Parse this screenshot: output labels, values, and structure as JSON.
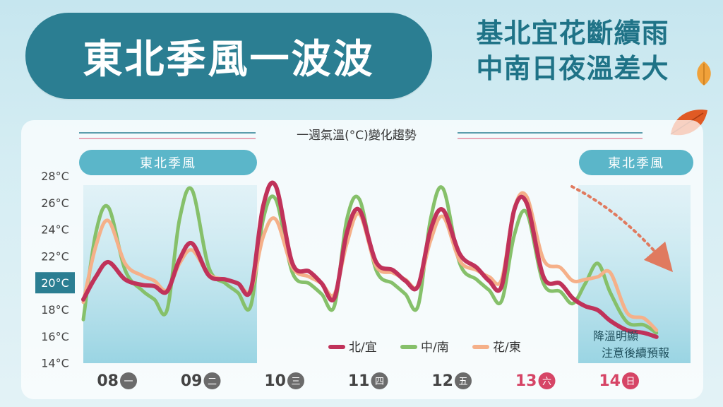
{
  "header": {
    "title": "東北季風一波波",
    "subtitle_line1": "基北宜花斷續雨",
    "subtitle_line2": "中南日夜溫差大"
  },
  "colors": {
    "north": "#c0325a",
    "central_south": "#86c06a",
    "hualien_taitung": "#f5b089",
    "title_bg": "#2b7e92",
    "band_fill": "#a9dbe7",
    "arrow": "#e07a5f"
  },
  "chart_data": {
    "type": "line",
    "title": "一週氣溫(°C)變化趨勢",
    "ylim": [
      14,
      28
    ],
    "yticks": [
      "28°C",
      "26°C",
      "24°C",
      "22°C",
      "20°C",
      "18°C",
      "16°C",
      "14°C"
    ],
    "highlight_tick": "20°C",
    "days": [
      {
        "date": "08",
        "weekday": "一",
        "weekend": false
      },
      {
        "date": "09",
        "weekday": "二",
        "weekend": false
      },
      {
        "date": "10",
        "weekday": "三",
        "weekend": false
      },
      {
        "date": "11",
        "weekday": "四",
        "weekend": false
      },
      {
        "date": "12",
        "weekday": "五",
        "weekend": false
      },
      {
        "date": "13",
        "weekday": "六",
        "weekend": true
      },
      {
        "date": "14",
        "weekday": "日",
        "weekend": true
      }
    ],
    "bands": [
      {
        "label": "東北季風",
        "from_day": 0,
        "to_day": 2
      },
      {
        "label": "東北季風",
        "from_day": 6,
        "to_day": 7
      }
    ],
    "annotation_line1": "降溫明顯",
    "annotation_line2": "注意後續預報",
    "series": [
      {
        "name": "北/宜",
        "color": "#c0325a",
        "points": [
          [
            0,
            18.8
          ],
          [
            0.15,
            20.5
          ],
          [
            0.3,
            21.6
          ],
          [
            0.5,
            20.3
          ],
          [
            0.7,
            19.9
          ],
          [
            0.85,
            19.8
          ],
          [
            1.0,
            19.4
          ],
          [
            1.15,
            21.8
          ],
          [
            1.3,
            23.0
          ],
          [
            1.5,
            20.6
          ],
          [
            1.7,
            20.3
          ],
          [
            1.85,
            20.0
          ],
          [
            2.0,
            19.5
          ],
          [
            2.15,
            25.8
          ],
          [
            2.3,
            27.3
          ],
          [
            2.5,
            21.5
          ],
          [
            2.7,
            20.9
          ],
          [
            2.85,
            20.0
          ],
          [
            3.0,
            18.9
          ],
          [
            3.15,
            23.8
          ],
          [
            3.3,
            25.5
          ],
          [
            3.5,
            21.6
          ],
          [
            3.7,
            21.0
          ],
          [
            3.85,
            20.2
          ],
          [
            4.0,
            19.8
          ],
          [
            4.15,
            24.0
          ],
          [
            4.3,
            25.5
          ],
          [
            4.5,
            22.2
          ],
          [
            4.7,
            21.2
          ],
          [
            4.85,
            20.2
          ],
          [
            5.0,
            19.8
          ],
          [
            5.15,
            25.5
          ],
          [
            5.3,
            26.0
          ],
          [
            5.5,
            20.5
          ],
          [
            5.7,
            20.0
          ],
          [
            5.85,
            18.9
          ],
          [
            6.0,
            18.3
          ],
          [
            6.15,
            18.0
          ],
          [
            6.3,
            17.2
          ],
          [
            6.5,
            16.5
          ],
          [
            6.7,
            16.3
          ],
          [
            6.85,
            16.0
          ]
        ]
      },
      {
        "name": "中/南",
        "color": "#86c06a",
        "points": [
          [
            0,
            17.3
          ],
          [
            0.15,
            23.8
          ],
          [
            0.3,
            25.7
          ],
          [
            0.5,
            21.0
          ],
          [
            0.7,
            19.5
          ],
          [
            0.85,
            18.8
          ],
          [
            1.0,
            18.0
          ],
          [
            1.15,
            24.8
          ],
          [
            1.3,
            27.0
          ],
          [
            1.5,
            21.2
          ],
          [
            1.7,
            20.0
          ],
          [
            1.85,
            19.3
          ],
          [
            2.0,
            18.3
          ],
          [
            2.15,
            24.8
          ],
          [
            2.3,
            26.3
          ],
          [
            2.5,
            20.8
          ],
          [
            2.7,
            20.0
          ],
          [
            2.85,
            19.2
          ],
          [
            3.0,
            18.3
          ],
          [
            3.15,
            24.8
          ],
          [
            3.3,
            26.3
          ],
          [
            3.5,
            21.0
          ],
          [
            3.7,
            20.0
          ],
          [
            3.85,
            19.2
          ],
          [
            4.0,
            18.3
          ],
          [
            4.15,
            24.8
          ],
          [
            4.3,
            27.1
          ],
          [
            4.5,
            21.5
          ],
          [
            4.7,
            20.3
          ],
          [
            4.85,
            19.5
          ],
          [
            5.0,
            18.7
          ],
          [
            5.15,
            23.6
          ],
          [
            5.3,
            25.3
          ],
          [
            5.5,
            20.0
          ],
          [
            5.7,
            19.4
          ],
          [
            5.85,
            18.5
          ],
          [
            6.0,
            20.0
          ],
          [
            6.15,
            21.5
          ],
          [
            6.3,
            19.3
          ],
          [
            6.5,
            17.1
          ],
          [
            6.7,
            16.9
          ],
          [
            6.85,
            16.3
          ]
        ]
      },
      {
        "name": "花/東",
        "color": "#f5b089",
        "points": [
          [
            0,
            18.6
          ],
          [
            0.15,
            22.8
          ],
          [
            0.3,
            24.7
          ],
          [
            0.5,
            21.5
          ],
          [
            0.7,
            20.6
          ],
          [
            0.85,
            20.2
          ],
          [
            1.0,
            19.5
          ],
          [
            1.15,
            21.5
          ],
          [
            1.3,
            22.5
          ],
          [
            1.5,
            20.7
          ],
          [
            1.7,
            20.3
          ],
          [
            1.85,
            20.0
          ],
          [
            2.0,
            19.5
          ],
          [
            2.15,
            23.5
          ],
          [
            2.3,
            24.8
          ],
          [
            2.5,
            21.2
          ],
          [
            2.7,
            20.5
          ],
          [
            2.85,
            20.0
          ],
          [
            3.0,
            19.2
          ],
          [
            3.15,
            23.0
          ],
          [
            3.3,
            25.2
          ],
          [
            3.5,
            21.3
          ],
          [
            3.7,
            20.8
          ],
          [
            3.85,
            20.3
          ],
          [
            4.0,
            19.8
          ],
          [
            4.15,
            23.2
          ],
          [
            4.3,
            25.0
          ],
          [
            4.5,
            21.7
          ],
          [
            4.7,
            21.0
          ],
          [
            4.85,
            20.5
          ],
          [
            5.0,
            20.3
          ],
          [
            5.15,
            25.6
          ],
          [
            5.3,
            26.5
          ],
          [
            5.5,
            21.8
          ],
          [
            5.7,
            21.2
          ],
          [
            5.85,
            20.2
          ],
          [
            6.0,
            20.3
          ],
          [
            6.15,
            20.5
          ],
          [
            6.3,
            20.8
          ],
          [
            6.5,
            17.8
          ],
          [
            6.7,
            17.4
          ],
          [
            6.85,
            16.5
          ]
        ]
      }
    ]
  }
}
